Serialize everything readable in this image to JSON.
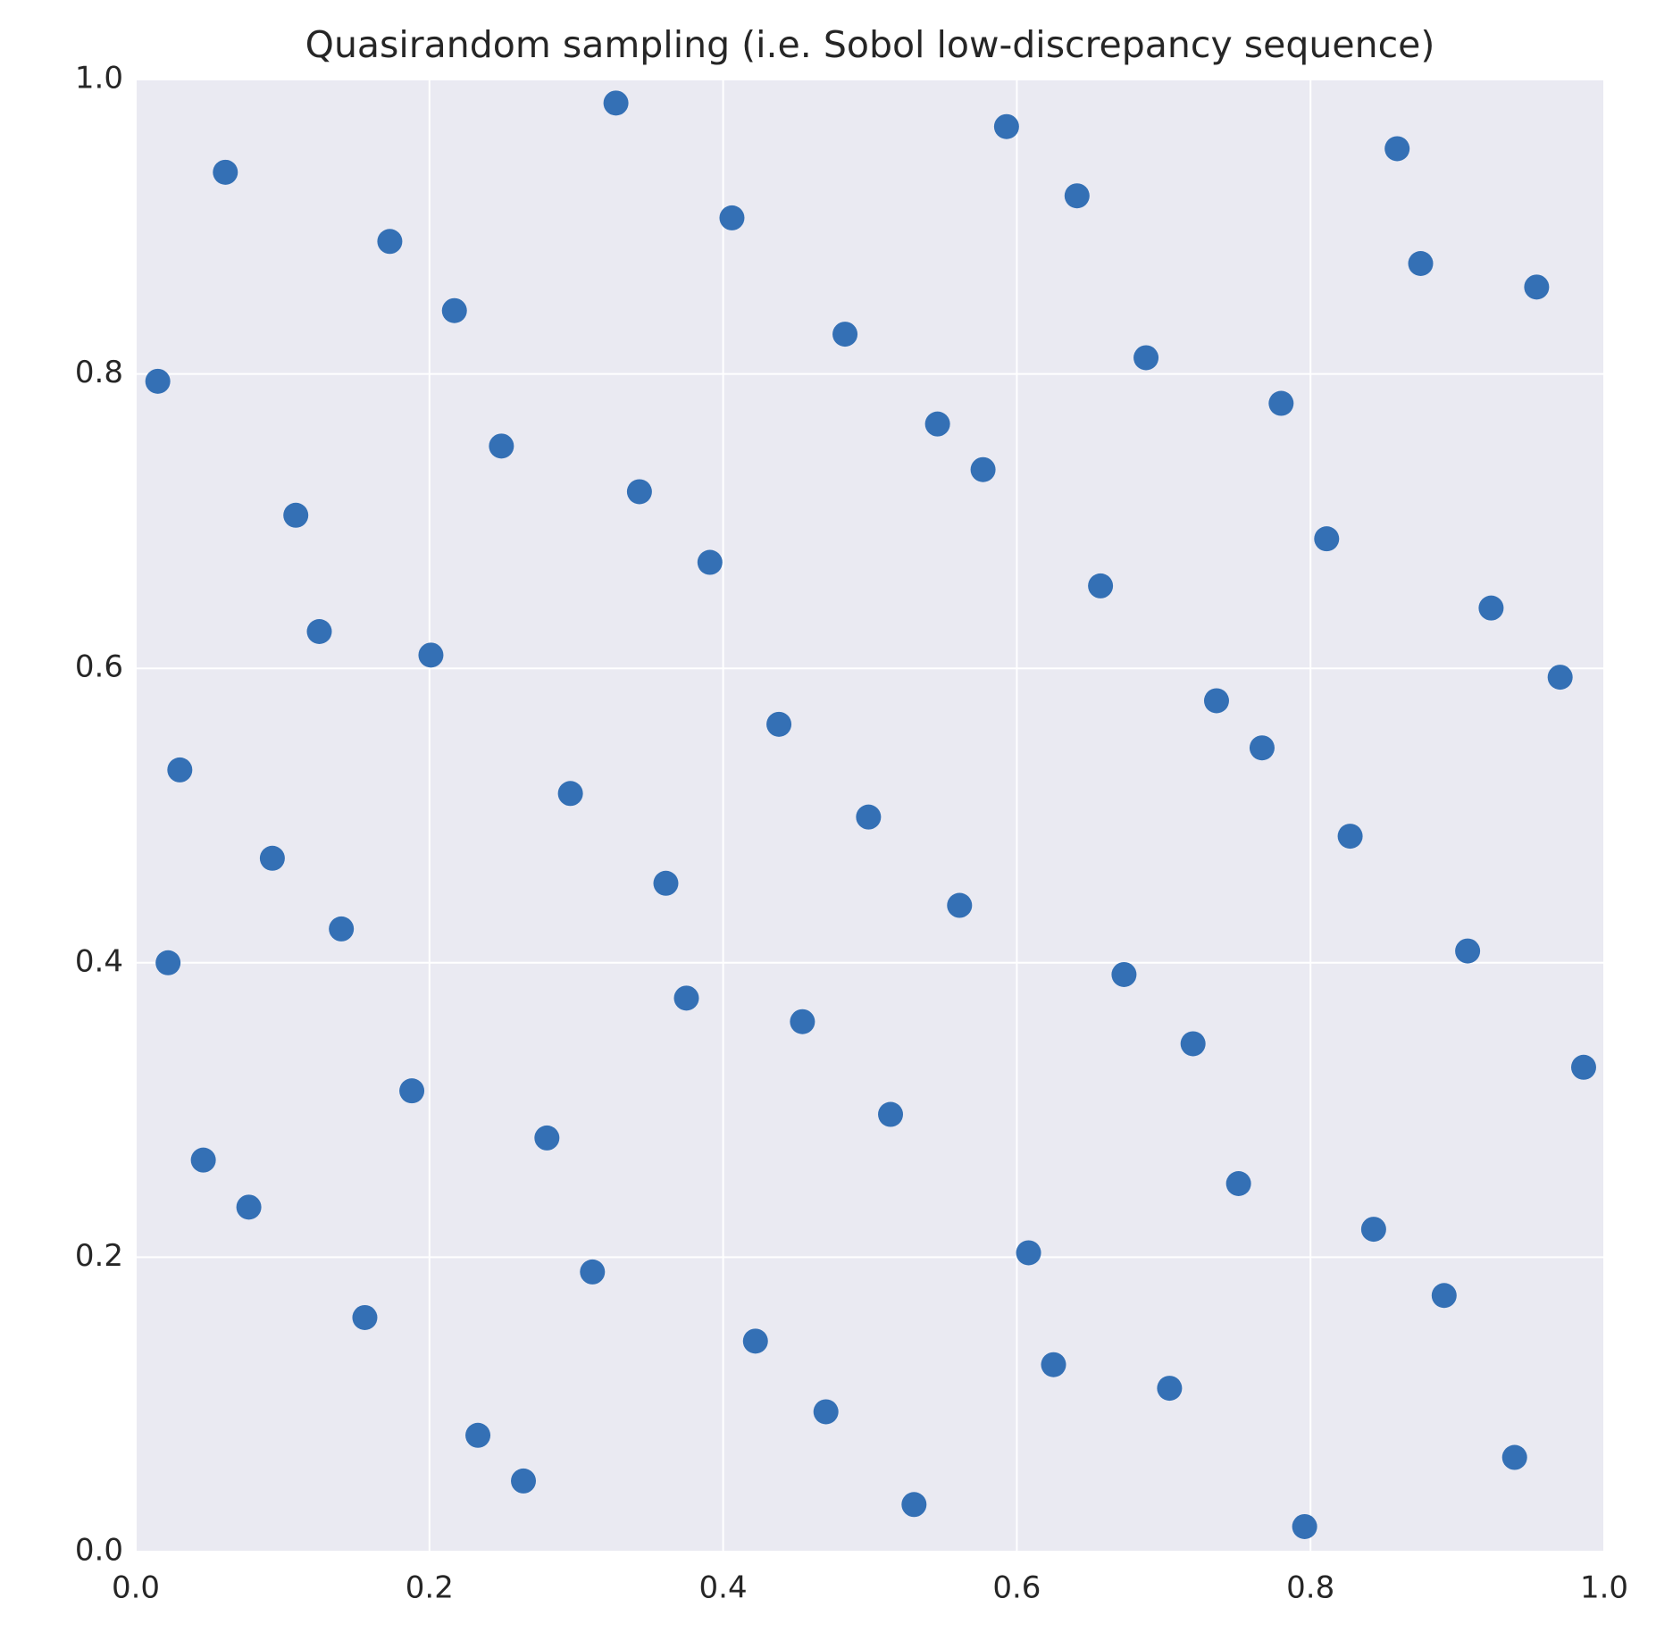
{
  "chart_data": {
    "type": "scatter",
    "title": "Quasirandom sampling (i.e. Sobol low-discrepancy sequence)",
    "color": "#3470b5",
    "grid": true,
    "xlim": [
      0,
      1
    ],
    "ylim": [
      0,
      1
    ],
    "xticks": [
      {
        "value": 0,
        "label": "0.0"
      },
      0.2,
      0.4,
      0.6,
      0.8,
      {
        "value": 1,
        "label": "1.0"
      }
    ],
    "yticks": [
      {
        "value": 0,
        "label": "0.0"
      },
      0.2,
      0.4,
      0.6,
      0.8,
      {
        "value": 1,
        "label": "1.0"
      }
    ],
    "x": [
      0.015,
      0.061,
      0.173,
      0.217,
      0.327,
      0.249,
      0.109,
      0.343,
      0.406,
      0.483,
      0.593,
      0.641,
      0.859,
      0.875,
      0.954,
      0.688,
      0.546,
      0.577,
      0.78,
      0.391,
      0.657,
      0.811,
      0.923,
      0.97,
      0.125,
      0.201,
      0.03,
      0.438,
      0.736,
      0.767,
      0.296,
      0.499,
      0.827,
      0.093,
      0.361,
      0.561,
      0.14,
      0.022,
      0.673,
      0.907,
      0.375,
      0.454,
      0.72,
      0.986,
      0.188,
      0.28,
      0.514,
      0.046,
      0.077,
      0.751,
      0.311,
      0.608,
      0.843,
      0.891,
      0.156,
      0.422,
      0.625,
      0.704,
      0.47,
      0.233,
      0.939,
      0.264,
      0.53,
      0.796
    ],
    "y": [
      0.795,
      0.937,
      0.89,
      0.843,
      0.984,
      0.751,
      0.704,
      0.72,
      0.906,
      0.827,
      0.968,
      0.921,
      0.953,
      0.875,
      0.859,
      0.811,
      0.766,
      0.735,
      0.78,
      0.672,
      0.656,
      0.688,
      0.641,
      0.594,
      0.625,
      0.609,
      0.531,
      0.562,
      0.578,
      0.546,
      0.515,
      0.499,
      0.486,
      0.471,
      0.454,
      0.439,
      0.423,
      0.4,
      0.392,
      0.408,
      0.376,
      0.36,
      0.345,
      0.329,
      0.313,
      0.281,
      0.297,
      0.266,
      0.234,
      0.25,
      0.19,
      0.203,
      0.219,
      0.174,
      0.159,
      0.143,
      0.127,
      0.111,
      0.095,
      0.079,
      0.064,
      0.048,
      0.032,
      0.017
    ]
  }
}
